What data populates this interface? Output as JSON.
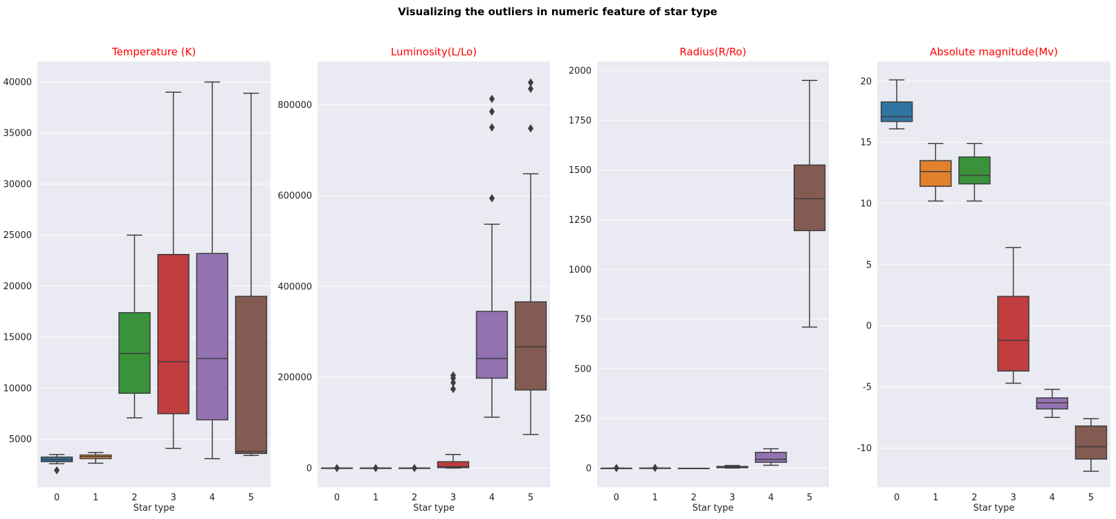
{
  "figure": {
    "suptitle": "Visualizing the outliers in numeric feature of star type",
    "subtitle_color": "#ff0000",
    "axes_bg": "#eaeaf2",
    "grid_color": "#ffffff",
    "box_edge": "#3d3d3d",
    "palette": [
      "#3274a1",
      "#e1812c",
      "#3a923a",
      "#c03d3e",
      "#9372b2",
      "#845b53"
    ]
  },
  "chart_data": [
    {
      "type": "box",
      "title": "Temperature (K)",
      "xlabel": "Star type",
      "ylabel": "",
      "categories": [
        "0",
        "1",
        "2",
        "3",
        "4",
        "5"
      ],
      "ylim": [
        300,
        42000
      ],
      "yticks": [
        5000,
        10000,
        15000,
        20000,
        25000,
        30000,
        35000,
        40000
      ],
      "grid": true,
      "boxes": [
        {
          "category": "0",
          "whislo": 2600,
          "q1": 2800,
          "med": 3000,
          "q3": 3250,
          "whishi": 3500,
          "fliers": [
            1950
          ]
        },
        {
          "category": "1",
          "whislo": 2650,
          "q1": 3100,
          "med": 3300,
          "q3": 3450,
          "whishi": 3700,
          "fliers": []
        },
        {
          "category": "2",
          "whislo": 7100,
          "q1": 9500,
          "med": 13400,
          "q3": 17400,
          "whishi": 25000,
          "fliers": []
        },
        {
          "category": "3",
          "whislo": 4100,
          "q1": 7500,
          "med": 12600,
          "q3": 23100,
          "whishi": 39000,
          "fliers": []
        },
        {
          "category": "4",
          "whislo": 3100,
          "q1": 6900,
          "med": 12900,
          "q3": 23200,
          "whishi": 40000,
          "fliers": []
        },
        {
          "category": "5",
          "whislo": 3400,
          "q1": 3600,
          "med": 3800,
          "q3": 19000,
          "whishi": 38900,
          "fliers": []
        }
      ]
    },
    {
      "type": "box",
      "title": "Luminosity(L/Lo)",
      "xlabel": "Star type",
      "ylabel": "",
      "categories": [
        "0",
        "1",
        "2",
        "3",
        "4",
        "5"
      ],
      "ylim": [
        -42000,
        895000
      ],
      "yticks": [
        0,
        200000,
        400000,
        600000,
        800000
      ],
      "grid": true,
      "boxes": [
        {
          "category": "0",
          "whislo": 0,
          "q1": 0,
          "med": 0,
          "q3": 0,
          "whishi": 0,
          "fliers": [
            50
          ]
        },
        {
          "category": "1",
          "whislo": 0,
          "q1": 0,
          "med": 0,
          "q3": 0,
          "whishi": 0,
          "fliers": [
            60
          ]
        },
        {
          "category": "2",
          "whislo": 0,
          "q1": 0,
          "med": 0,
          "q3": 0,
          "whishi": 0,
          "fliers": [
            40
          ]
        },
        {
          "category": "3",
          "whislo": 0,
          "q1": 1000,
          "med": 3000,
          "q3": 14000,
          "whishi": 30000,
          "fliers": [
            174000,
            188000,
            198000,
            204000
          ]
        },
        {
          "category": "4",
          "whislo": 112000,
          "q1": 198000,
          "med": 241000,
          "q3": 345000,
          "whishi": 537000,
          "fliers": [
            594000,
            750000,
            785000,
            813000
          ]
        },
        {
          "category": "5",
          "whislo": 74000,
          "q1": 172000,
          "med": 267000,
          "q3": 366000,
          "whishi": 648000,
          "fliers": [
            748000,
            835000,
            849000
          ]
        }
      ]
    },
    {
      "type": "box",
      "title": "Radius(R/Ro)",
      "xlabel": "Star type",
      "ylabel": "",
      "categories": [
        "0",
        "1",
        "2",
        "3",
        "4",
        "5"
      ],
      "ylim": [
        -95,
        2045
      ],
      "yticks": [
        0,
        250,
        500,
        750,
        1000,
        1250,
        1500,
        1750,
        2000
      ],
      "grid": true,
      "boxes": [
        {
          "category": "0",
          "whislo": 0.1,
          "q1": 0.1,
          "med": 0.15,
          "q3": 0.2,
          "whishi": 0.3,
          "fliers": [
            1
          ]
        },
        {
          "category": "1",
          "whislo": 0.3,
          "q1": 0.5,
          "med": 0.6,
          "q3": 0.8,
          "whishi": 1.5,
          "fliers": [
            2
          ]
        },
        {
          "category": "2",
          "whislo": 0.008,
          "q1": 0.009,
          "med": 0.01,
          "q3": 0.012,
          "whishi": 0.02,
          "fliers": []
        },
        {
          "category": "3",
          "whislo": 1,
          "q1": 3,
          "med": 5.5,
          "q3": 9,
          "whishi": 14,
          "fliers": []
        },
        {
          "category": "4",
          "whislo": 15,
          "q1": 30,
          "med": 45,
          "q3": 80,
          "whishi": 98,
          "fliers": []
        },
        {
          "category": "5",
          "whislo": 710,
          "q1": 1195,
          "med": 1355,
          "q3": 1525,
          "whishi": 1950,
          "fliers": []
        }
      ]
    },
    {
      "type": "box",
      "title": "Absolute magnitude(Mv)",
      "xlabel": "Star type",
      "ylabel": "",
      "categories": [
        "0",
        "1",
        "2",
        "3",
        "4",
        "5"
      ],
      "ylim": [
        -13.2,
        21.6
      ],
      "yticks": [
        -10,
        -5,
        0,
        5,
        10,
        15,
        20
      ],
      "grid": true,
      "boxes": [
        {
          "category": "0",
          "whislo": 16.1,
          "q1": 16.7,
          "med": 17.1,
          "q3": 18.3,
          "whishi": 20.1,
          "fliers": []
        },
        {
          "category": "1",
          "whislo": 10.2,
          "q1": 11.4,
          "med": 12.6,
          "q3": 13.5,
          "whishi": 14.9,
          "fliers": []
        },
        {
          "category": "2",
          "whislo": 10.2,
          "q1": 11.6,
          "med": 12.3,
          "q3": 13.8,
          "whishi": 14.9,
          "fliers": []
        },
        {
          "category": "3",
          "whislo": -4.7,
          "q1": -3.7,
          "med": -1.2,
          "q3": 2.4,
          "whishi": 6.4,
          "fliers": []
        },
        {
          "category": "4",
          "whislo": -7.5,
          "q1": -6.8,
          "med": -6.3,
          "q3": -5.9,
          "whishi": -5.2,
          "fliers": []
        },
        {
          "category": "5",
          "whislo": -11.9,
          "q1": -10.9,
          "med": -9.9,
          "q3": -8.2,
          "whishi": -7.6,
          "fliers": []
        }
      ]
    }
  ]
}
